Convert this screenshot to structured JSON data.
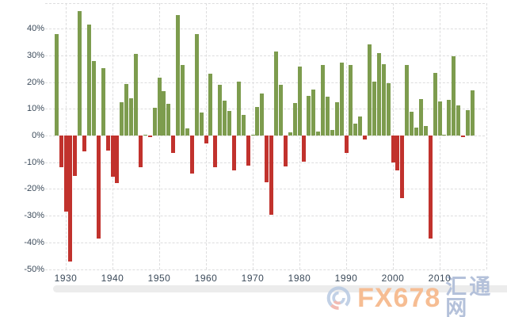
{
  "chart_data": {
    "type": "bar",
    "title": "",
    "xlabel": "",
    "ylabel": "",
    "legend": "none",
    "grid": "dashed",
    "background": "#ffffff",
    "grid_color": "#dddddd",
    "axis_label_color": "#3b4a5a",
    "positive_color": "#7d9c4e",
    "negative_color": "#c1322d",
    "ylim": [
      -50,
      49
    ],
    "y_tick_values": [
      40,
      30,
      20,
      10,
      0,
      -10,
      -20,
      -30,
      -40,
      -50
    ],
    "y_tick_labels": [
      "40%",
      "30%",
      "20%",
      "10%",
      "0%",
      "-10%",
      "-20%",
      "-30%",
      "-40%",
      "-50%"
    ],
    "x_tick_values": [
      1930,
      1940,
      1950,
      1960,
      1970,
      1980,
      1990,
      2000,
      2010
    ],
    "x_tick_labels": [
      "1930",
      "1940",
      "1950",
      "1960",
      "1970",
      "1980",
      "1990",
      "2000",
      "2010"
    ],
    "x_grid_years": [
      1930,
      1940,
      1950,
      1960,
      1970,
      1980,
      1990,
      2000,
      2010,
      2020
    ],
    "categories": [
      1928,
      1929,
      1930,
      1931,
      1932,
      1933,
      1934,
      1935,
      1936,
      1937,
      1938,
      1939,
      1940,
      1941,
      1942,
      1943,
      1944,
      1945,
      1946,
      1947,
      1948,
      1949,
      1950,
      1951,
      1952,
      1953,
      1954,
      1955,
      1956,
      1957,
      1958,
      1959,
      1960,
      1961,
      1962,
      1963,
      1964,
      1965,
      1966,
      1967,
      1968,
      1969,
      1970,
      1971,
      1972,
      1973,
      1974,
      1975,
      1976,
      1977,
      1978,
      1979,
      1980,
      1981,
      1982,
      1983,
      1984,
      1985,
      1986,
      1987,
      1988,
      1989,
      1990,
      1991,
      1992,
      1993,
      1994,
      1995,
      1996,
      1997,
      1998,
      1999,
      2000,
      2001,
      2002,
      2003,
      2004,
      2005,
      2006,
      2007,
      2008,
      2009,
      2010,
      2011,
      2012,
      2013,
      2014,
      2015,
      2016,
      2017
    ],
    "values": [
      37.9,
      -11.9,
      -28.5,
      -47.1,
      -15.1,
      46.6,
      -5.9,
      41.4,
      27.9,
      -38.6,
      25.2,
      -5.5,
      -15.3,
      -17.9,
      12.4,
      19.4,
      13.8,
      30.7,
      -11.9,
      0.0,
      -0.7,
      10.3,
      21.8,
      16.5,
      11.8,
      -6.6,
      45.0,
      26.4,
      2.6,
      -14.3,
      38.1,
      8.5,
      -3.0,
      23.1,
      -11.8,
      18.9,
      13.0,
      9.1,
      -13.1,
      20.1,
      7.7,
      -11.4,
      0.1,
      10.8,
      15.6,
      -17.4,
      -29.7,
      31.5,
      19.1,
      -11.5,
      1.1,
      12.3,
      25.8,
      -9.7,
      14.8,
      17.3,
      1.4,
      26.3,
      14.6,
      2.0,
      12.4,
      27.3,
      -6.6,
      26.3,
      4.5,
      7.1,
      -1.5,
      34.1,
      20.3,
      31.0,
      26.7,
      19.5,
      -10.1,
      -13.0,
      -23.4,
      26.4,
      9.0,
      3.0,
      13.6,
      3.5,
      -38.5,
      23.5,
      12.8,
      0.0,
      13.4,
      29.6,
      11.4,
      -0.7,
      9.5,
      17.0
    ]
  },
  "scrollbar": {
    "color": "#ececec"
  },
  "watermark": {
    "logo_icon": "fx678-swirl-logo",
    "brand": "FX678",
    "site": "汇通网",
    "brand_color": "#f6bd93",
    "site_color": "#b4c1da",
    "logo_blue": "#b8c9e2",
    "logo_red": "#f0b0a6"
  }
}
